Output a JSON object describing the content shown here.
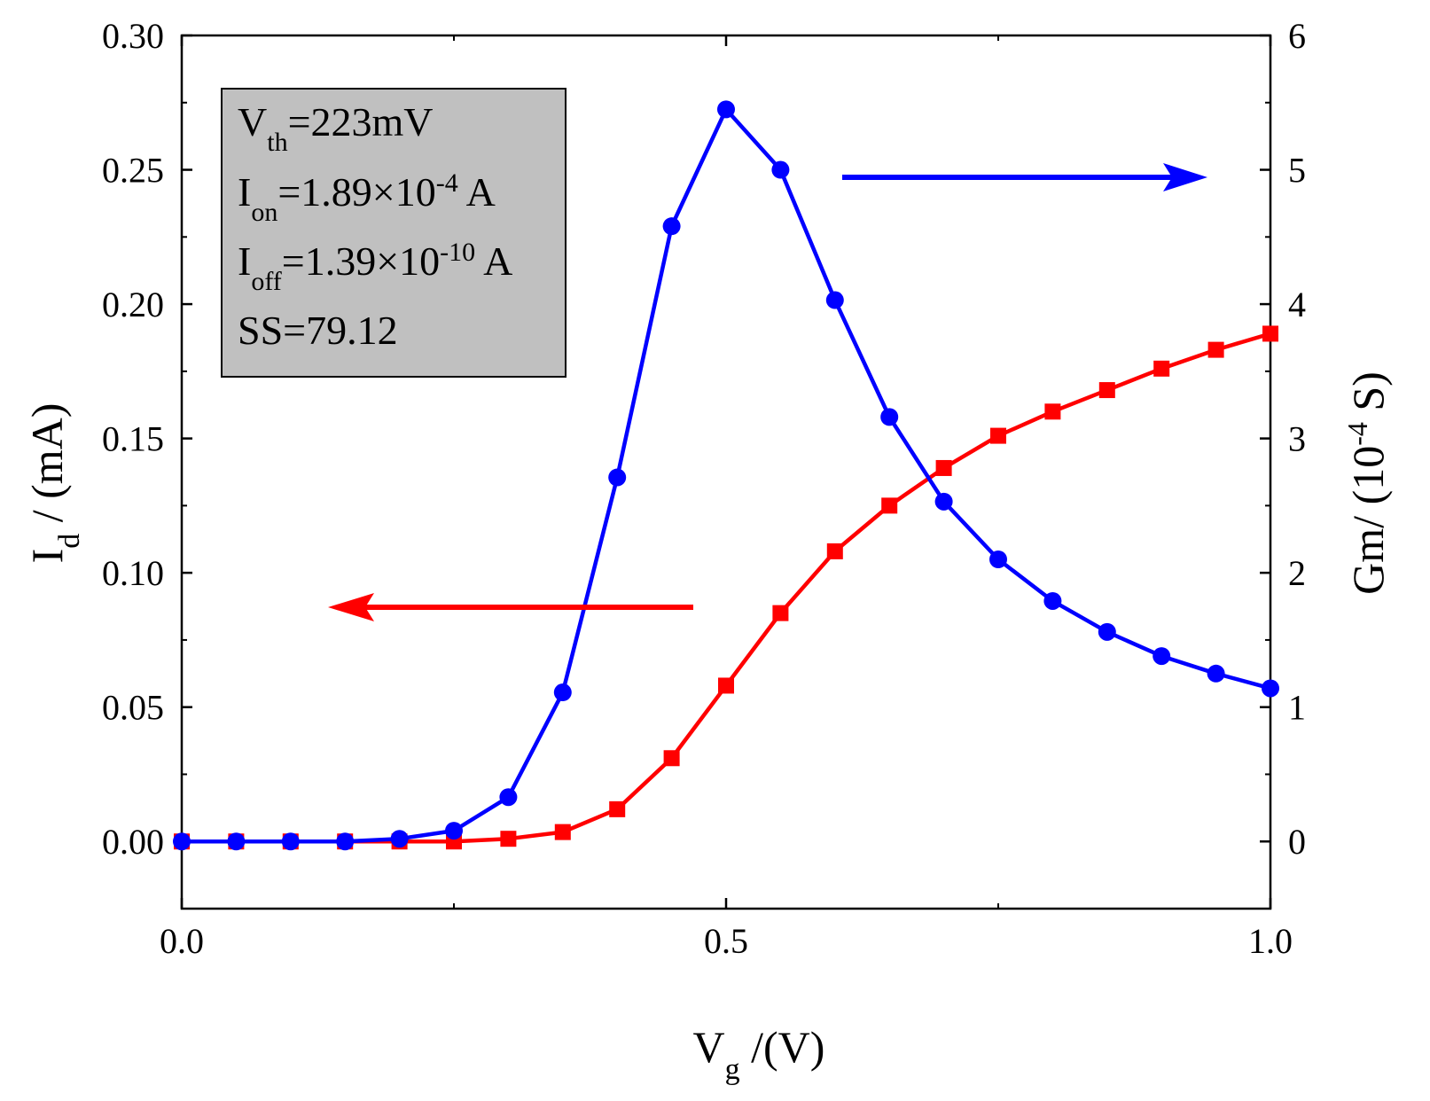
{
  "chart_data": {
    "type": "line",
    "xlabel": {
      "main": "V",
      "sub": "g",
      "rest": " /(V)"
    },
    "ylabel_left": {
      "main": "I",
      "sub": "d",
      "rest": " / (mA)"
    },
    "ylabel_right": {
      "pre": "Gm/ (10",
      "sup": "-4",
      "post": " S)"
    },
    "xlim": [
      0,
      1
    ],
    "ylim_left": [
      -0.025,
      0.3
    ],
    "ylim_right": [
      -0.5,
      6
    ],
    "x_ticks": [
      0.0,
      0.5,
      1.0
    ],
    "x_tick_labels": [
      "0.0",
      "0.5",
      "1.0"
    ],
    "y_left_ticks": [
      0.0,
      0.05,
      0.1,
      0.15,
      0.2,
      0.25,
      0.3
    ],
    "y_left_tick_labels": [
      "0.00",
      "0.05",
      "0.10",
      "0.15",
      "0.20",
      "0.25",
      "0.30"
    ],
    "y_right_ticks": [
      0,
      1,
      2,
      3,
      4,
      5,
      6
    ],
    "y_right_tick_labels": [
      "0",
      "1",
      "2",
      "3",
      "4",
      "5",
      "6"
    ],
    "grid": false,
    "legend": "none",
    "series": [
      {
        "axis": "left",
        "marker": "square",
        "color": "#ff0000",
        "x": [
          0.0,
          0.05,
          0.1,
          0.15,
          0.2,
          0.25,
          0.3,
          0.35,
          0.4,
          0.45,
          0.5,
          0.55,
          0.6,
          0.65,
          0.7,
          0.75,
          0.8,
          0.85,
          0.9,
          0.95,
          1.0
        ],
        "y": [
          0.0,
          0.0,
          0.0,
          0.0,
          0.0,
          0.0,
          0.001,
          0.0035,
          0.012,
          0.031,
          0.058,
          0.085,
          0.108,
          0.125,
          0.139,
          0.151,
          0.16,
          0.168,
          0.176,
          0.183,
          0.189
        ]
      },
      {
        "axis": "right",
        "marker": "circle",
        "color": "#0000ff",
        "x": [
          0.0,
          0.05,
          0.1,
          0.15,
          0.2,
          0.25,
          0.3,
          0.35,
          0.4,
          0.45,
          0.5,
          0.55,
          0.6,
          0.65,
          0.7,
          0.75,
          0.8,
          0.85,
          0.9,
          0.95,
          1.0
        ],
        "y": [
          0.0,
          0.0,
          0.0,
          0.0,
          0.02,
          0.08,
          0.33,
          1.11,
          2.71,
          4.58,
          5.45,
          5.0,
          4.03,
          3.16,
          2.53,
          2.1,
          1.79,
          1.56,
          1.38,
          1.25,
          1.14
        ]
      }
    ],
    "annotation": {
      "lines": [
        {
          "main": "V",
          "sub": "th",
          "rest": "=223mV",
          "sup": "",
          "tail": ""
        },
        {
          "main": "I",
          "sub": "on",
          "rest": "=1.89×10",
          "sup": "-4",
          "tail": " A"
        },
        {
          "main": "I",
          "sub": "off",
          "rest": "=1.39×10",
          "sup": "-10",
          "tail": " A"
        },
        {
          "main": "SS=79.12",
          "sub": "",
          "rest": "",
          "sup": "",
          "tail": ""
        }
      ],
      "box_color": "#c0c0c0"
    },
    "arrows": [
      {
        "direction": "right",
        "color": "#0000ff",
        "points_to": "right-axis"
      },
      {
        "direction": "left",
        "color": "#ff0000",
        "points_to": "left-axis"
      }
    ]
  }
}
